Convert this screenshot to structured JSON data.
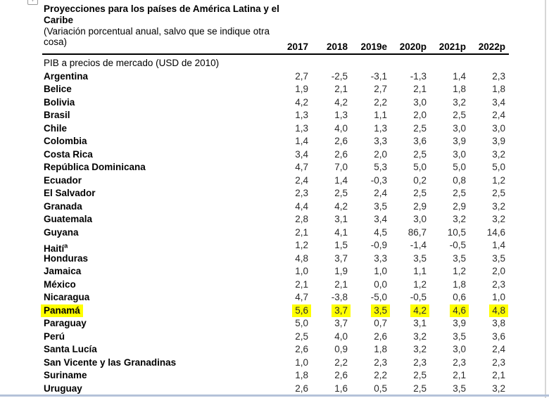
{
  "page": {
    "title": "Proyecciones para los países de América Latina y el Caribe",
    "subtitle": "(Variación porcentual anual, salvo que se indique otra cosa)",
    "anchor_icon": "+"
  },
  "table": {
    "section_label": "PIB a precios de mercado (USD de 2010)",
    "columns": [
      "2017",
      "2018",
      "2019e",
      "2020p",
      "2021p",
      "2022p"
    ],
    "highlight_color": "#ffff00",
    "rows": [
      {
        "name": "Argentina",
        "values": [
          "2,7",
          "-2,5",
          "-3,1",
          "-1,3",
          "1,4",
          "2,3"
        ]
      },
      {
        "name": "Belice",
        "values": [
          "1,9",
          "2,1",
          "2,7",
          "2,1",
          "1,8",
          "1,8"
        ]
      },
      {
        "name": "Bolivia",
        "values": [
          "4,2",
          "4,2",
          "2,2",
          "3,0",
          "3,2",
          "3,4"
        ]
      },
      {
        "name": "Brasil",
        "values": [
          "1,3",
          "1,3",
          "1,1",
          "2,0",
          "2,5",
          "2,4"
        ]
      },
      {
        "name": "Chile",
        "values": [
          "1,3",
          "4,0",
          "1,3",
          "2,5",
          "3,0",
          "3,0"
        ]
      },
      {
        "name": "Colombia",
        "values": [
          "1,4",
          "2,6",
          "3,3",
          "3,6",
          "3,9",
          "3,9"
        ]
      },
      {
        "name": "Costa Rica",
        "values": [
          "3,4",
          "2,6",
          "2,0",
          "2,5",
          "3,0",
          "3,2"
        ]
      },
      {
        "name": "República Dominicana",
        "values": [
          "4,7",
          "7,0",
          "5,3",
          "5,0",
          "5,0",
          "5,0"
        ]
      },
      {
        "name": "Ecuador",
        "values": [
          "2,4",
          "1,4",
          "-0,3",
          "0,2",
          "0,8",
          "1,2"
        ]
      },
      {
        "name": "El Salvador",
        "values": [
          "2,3",
          "2,5",
          "2,4",
          "2,5",
          "2,5",
          "2,5"
        ]
      },
      {
        "name": "Granada",
        "values": [
          "4,4",
          "4,2",
          "3,5",
          "2,9",
          "2,9",
          "3,2"
        ]
      },
      {
        "name": "Guatemala",
        "values": [
          "2,8",
          "3,1",
          "3,4",
          "3,0",
          "3,2",
          "3,2"
        ]
      },
      {
        "name": "Guyana",
        "values": [
          "2,1",
          "4,1",
          "4,5",
          "86,7",
          "10,5",
          "14,6"
        ]
      },
      {
        "name": "Haití",
        "name_superscript": "a",
        "values": [
          "1,2",
          "1,5",
          "-0,9",
          "-1,4",
          "-0,5",
          "1,4"
        ]
      },
      {
        "name": "Honduras",
        "values": [
          "4,8",
          "3,7",
          "3,3",
          "3,5",
          "3,5",
          "3,5"
        ]
      },
      {
        "name": "Jamaica",
        "values": [
          "1,0",
          "1,9",
          "1,0",
          "1,1",
          "1,2",
          "2,0"
        ]
      },
      {
        "name": "México",
        "values": [
          "2,1",
          "2,1",
          "0,0",
          "1,2",
          "1,8",
          "2,3"
        ]
      },
      {
        "name": "Nicaragua",
        "values": [
          "4,7",
          "-3,8",
          "-5,0",
          "-0,5",
          "0,6",
          "1,0"
        ]
      },
      {
        "name": "Panamá",
        "highlight": true,
        "values": [
          "5,6",
          "3,7",
          "3,5",
          "4,2",
          "4,6",
          "4,8"
        ]
      },
      {
        "name": "Paraguay",
        "values": [
          "5,0",
          "3,7",
          "0,7",
          "3,1",
          "3,9",
          "3,8"
        ]
      },
      {
        "name": "Perú",
        "values": [
          "2,5",
          "4,0",
          "2,6",
          "3,2",
          "3,5",
          "3,6"
        ]
      },
      {
        "name": "Santa Lucía",
        "values": [
          "2,6",
          "0,9",
          "1,8",
          "3,2",
          "3,0",
          "2,4"
        ]
      },
      {
        "name": "San Vicente y las Granadinas",
        "values": [
          "1,0",
          "2,2",
          "2,3",
          "2,3",
          "2,3",
          "2,3"
        ]
      },
      {
        "name": "Suriname",
        "values": [
          "1,8",
          "2,6",
          "2,2",
          "2,5",
          "2,1",
          "2,1"
        ]
      },
      {
        "name": "Uruguay",
        "values": [
          "2,6",
          "1,6",
          "0,5",
          "2,5",
          "3,5",
          "3,2"
        ]
      }
    ]
  }
}
